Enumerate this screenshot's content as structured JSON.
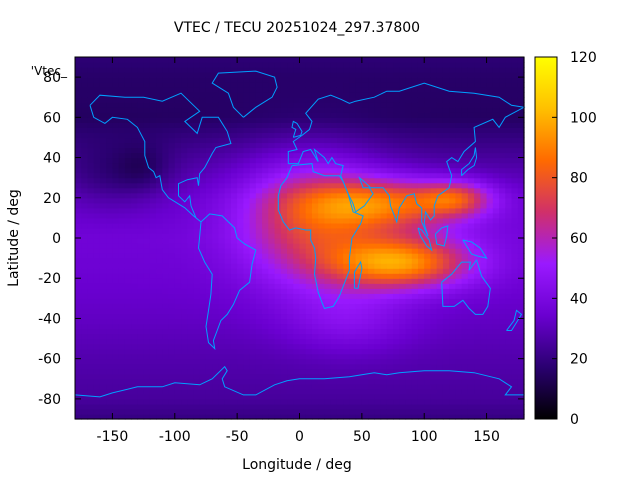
{
  "chart_data": {
    "type": "heatmap",
    "title": "VTEC / TECU 20251024_297.37800",
    "xlabel": "Longitude / deg",
    "ylabel": "Latitude / deg",
    "key_label": "'Vtec_",
    "xlim": [
      -180,
      180
    ],
    "ylim": [
      -90,
      90
    ],
    "xticks": [
      -150,
      -100,
      -50,
      0,
      50,
      100,
      150
    ],
    "yticks": [
      -80,
      -60,
      -40,
      -20,
      0,
      20,
      40,
      60,
      80
    ],
    "colorbar": {
      "range": [
        0,
        120
      ],
      "ticks": [
        0,
        20,
        40,
        60,
        80,
        100,
        120
      ]
    },
    "colormap": [
      "#000000",
      "#2a0070",
      "#6a00d0",
      "#9a19ff",
      "#d0306a",
      "#ff6a00",
      "#ffc000",
      "#ffff00"
    ],
    "coastline_color": "#00a0ff",
    "grid": false,
    "field_model": {
      "background_by_latitude": [
        [
          -90,
          20
        ],
        [
          -80,
          25
        ],
        [
          -60,
          28
        ],
        [
          -40,
          32
        ],
        [
          -20,
          35
        ],
        [
          0,
          37
        ],
        [
          20,
          34
        ],
        [
          40,
          25
        ],
        [
          60,
          15
        ],
        [
          80,
          16
        ],
        [
          90,
          18
        ]
      ],
      "gaussians": [
        {
          "lon": 10,
          "lat": 10,
          "amp": 37,
          "sx": 40,
          "sy": 22
        },
        {
          "lon": 80,
          "lat": -12,
          "amp": 58,
          "sx": 40,
          "sy": 9
        },
        {
          "lon": 70,
          "lat": 17,
          "amp": 45,
          "sx": 45,
          "sy": 9
        },
        {
          "lon": 125,
          "lat": 20,
          "amp": 32,
          "sx": 20,
          "sy": 6
        },
        {
          "lon": 40,
          "lat": -40,
          "amp": 12,
          "sx": 35,
          "sy": 12
        },
        {
          "lon": -150,
          "lat": 30,
          "amp": -10,
          "sx": 30,
          "sy": 12
        },
        {
          "lon": -125,
          "lat": 35,
          "amp": -7,
          "sx": 15,
          "sy": 8
        }
      ]
    }
  }
}
